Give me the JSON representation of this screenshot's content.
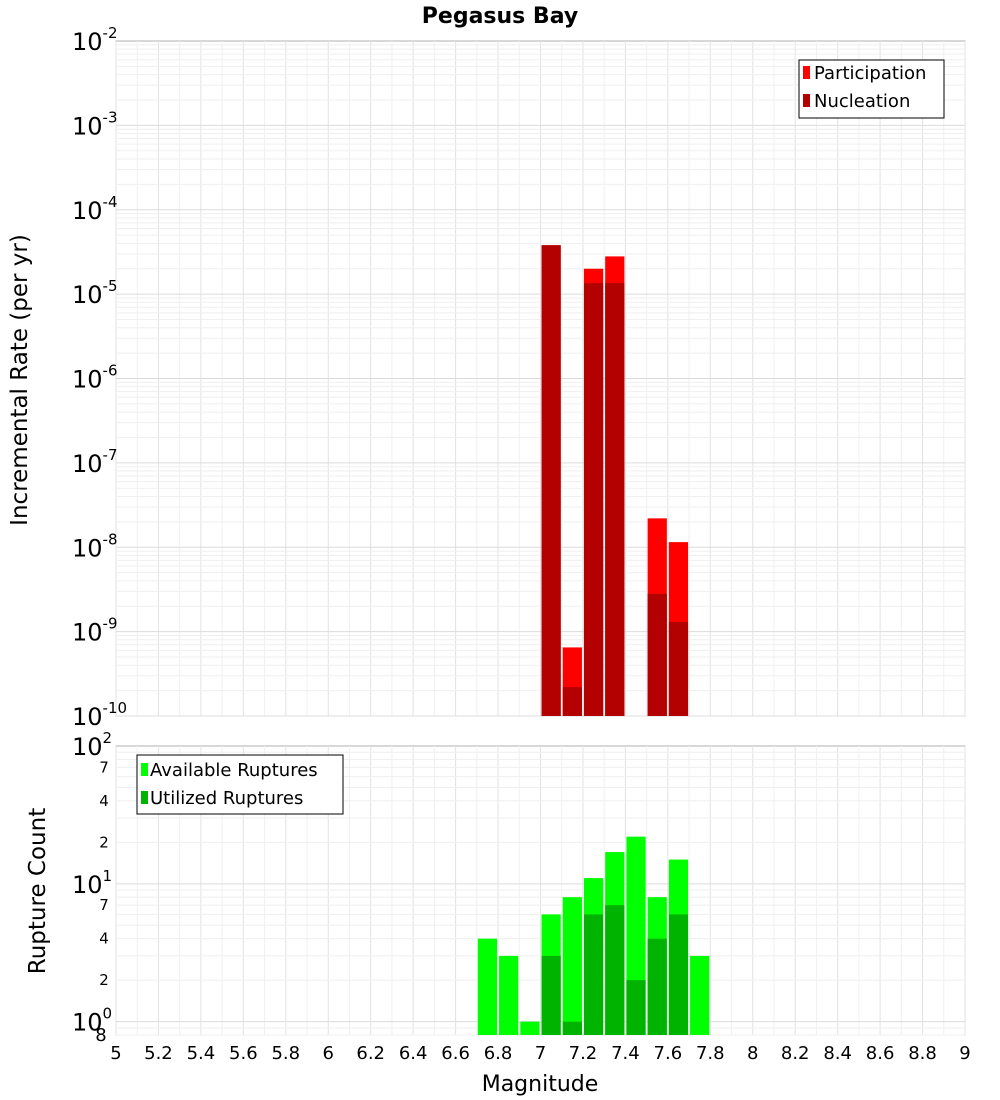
{
  "chart_data": [
    {
      "type": "bar",
      "title": "Pegasus Bay",
      "ylabel": "Incremental Rate (per yr)",
      "xlabel": "Magnitude",
      "yscale": "log",
      "ylim": [
        1e-10,
        0.01
      ],
      "xlim": [
        5,
        9
      ],
      "y_ticks": [
        {
          "base": "10",
          "exp": "-10"
        },
        {
          "base": "10",
          "exp": "-9"
        },
        {
          "base": "10",
          "exp": "-8"
        },
        {
          "base": "10",
          "exp": "-7"
        },
        {
          "base": "10",
          "exp": "-6"
        },
        {
          "base": "10",
          "exp": "-5"
        },
        {
          "base": "10",
          "exp": "-4"
        },
        {
          "base": "10",
          "exp": "-3"
        },
        {
          "base": "10",
          "exp": "-2"
        }
      ],
      "bin_width": 0.1,
      "grid": true,
      "legend": {
        "placement": "top-right"
      },
      "series": [
        {
          "name": "Participation",
          "color": "#ff0000",
          "points": [
            {
              "x": 7.05,
              "y": 3.8e-05
            },
            {
              "x": 7.15,
              "y": 6.5e-10
            },
            {
              "x": 7.25,
              "y": 2e-05
            },
            {
              "x": 7.35,
              "y": 2.8e-05
            },
            {
              "x": 7.55,
              "y": 2.2e-08
            },
            {
              "x": 7.65,
              "y": 1.15e-08
            }
          ]
        },
        {
          "name": "Nucleation",
          "color": "#b30000",
          "points": [
            {
              "x": 7.05,
              "y": 3.8e-05
            },
            {
              "x": 7.15,
              "y": 2.2e-10
            },
            {
              "x": 7.25,
              "y": 1.35e-05
            },
            {
              "x": 7.35,
              "y": 1.35e-05
            },
            {
              "x": 7.55,
              "y": 2.8e-09
            },
            {
              "x": 7.65,
              "y": 1.3e-09
            }
          ]
        }
      ]
    },
    {
      "type": "bar",
      "ylabel": "Rupture Count",
      "xlabel": "Magnitude",
      "yscale": "log",
      "ylim": [
        0.8,
        100
      ],
      "xlim": [
        5,
        9
      ],
      "x_ticks": [
        "5",
        "5.2",
        "5.4",
        "5.6",
        "5.8",
        "6",
        "6.2",
        "6.4",
        "6.6",
        "6.8",
        "7",
        "7.2",
        "7.4",
        "7.6",
        "7.8",
        "8",
        "8.2",
        "8.4",
        "8.6",
        "8.8",
        "9"
      ],
      "y_ticks": [
        {
          "base": "10",
          "exp": "0"
        },
        {
          "base": "10",
          "exp": "1"
        },
        {
          "base": "10",
          "exp": "2"
        }
      ],
      "y_minor_labels": [
        "8",
        "2",
        "4",
        "7",
        "2",
        "4",
        "7"
      ],
      "bin_width": 0.1,
      "grid": true,
      "legend": {
        "placement": "top-left"
      },
      "series": [
        {
          "name": "Available Ruptures",
          "color": "#00ff00",
          "points": [
            {
              "x": 6.75,
              "y": 4
            },
            {
              "x": 6.85,
              "y": 3
            },
            {
              "x": 6.95,
              "y": 1
            },
            {
              "x": 7.05,
              "y": 6
            },
            {
              "x": 7.15,
              "y": 8
            },
            {
              "x": 7.25,
              "y": 11
            },
            {
              "x": 7.35,
              "y": 17
            },
            {
              "x": 7.45,
              "y": 22
            },
            {
              "x": 7.55,
              "y": 8
            },
            {
              "x": 7.65,
              "y": 15
            },
            {
              "x": 7.75,
              "y": 3
            }
          ]
        },
        {
          "name": "Utilized Ruptures",
          "color": "#00b300",
          "points": [
            {
              "x": 7.05,
              "y": 3
            },
            {
              "x": 7.15,
              "y": 1
            },
            {
              "x": 7.25,
              "y": 6
            },
            {
              "x": 7.35,
              "y": 7
            },
            {
              "x": 7.45,
              "y": 2
            },
            {
              "x": 7.55,
              "y": 4
            },
            {
              "x": 7.65,
              "y": 6
            }
          ]
        }
      ]
    }
  ]
}
